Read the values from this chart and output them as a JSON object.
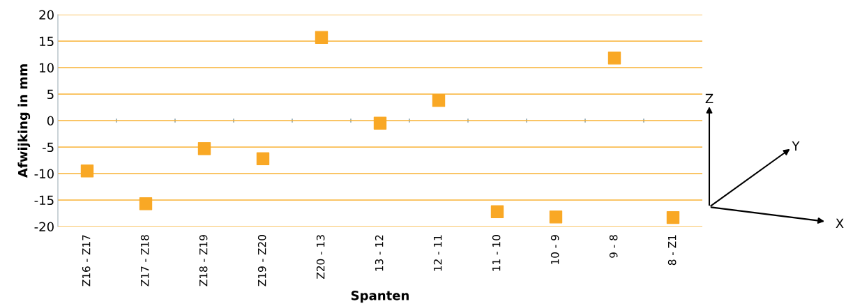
{
  "chart_data": {
    "type": "scatter",
    "xlabel": "Spanten",
    "ylabel": "Afwijking in mm",
    "categories": [
      "Z16 - Z17",
      "Z17 - Z18",
      "Z18 - Z19",
      "Z19 - Z20",
      "Z20 - 13",
      "13 - 12",
      "12 - 11",
      "11 - 10",
      "10 - 9",
      "9 - 8",
      "8 - Z1"
    ],
    "series": [
      {
        "color": "#f9a825",
        "values": [
          -9.5,
          -15.7,
          -5.3,
          -7.2,
          15.7,
          -0.5,
          3.8,
          -17.2,
          -18.2,
          11.8,
          -18.3
        ]
      }
    ],
    "ylim": [
      -20,
      20
    ],
    "yticks": [
      -20,
      -15,
      -10,
      -5,
      0,
      5,
      10,
      15,
      20
    ],
    "grid": "y",
    "marker": "square",
    "legend": false,
    "annotations": [
      "Z",
      "Y",
      "X"
    ]
  }
}
